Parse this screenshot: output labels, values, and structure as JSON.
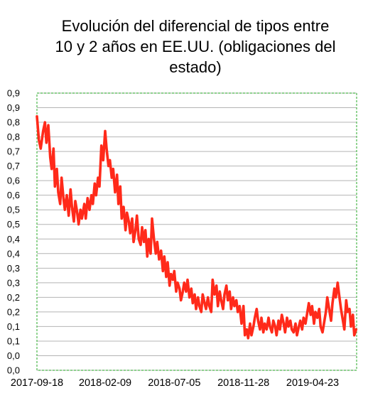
{
  "chart_data": {
    "type": "line",
    "title_lines": [
      "Evolución del diferencial de tipos entre",
      "10 y 2 años en EE.UU. (obligaciones del",
      "estado)"
    ],
    "xlabel": "",
    "ylabel": "",
    "x_tick_labels": [
      "2017-09-18",
      "2018-02-09",
      "2018-07-05",
      "2018-11-28",
      "2019-04-23"
    ],
    "x_tick_dates": [
      "2017-09-18",
      "2018-02-09",
      "2018-07-05",
      "2018-11-28",
      "2019-04-23"
    ],
    "x_range": [
      "2017-09-18",
      "2019-07-25"
    ],
    "y_tick_labels": [
      "0,0",
      "0,0",
      "0,1",
      "0,1",
      "0,2",
      "0,2",
      "0,3",
      "0,3",
      "0,4",
      "0,4",
      "0,5",
      "0,5",
      "0,6",
      "0,6",
      "0,7",
      "0,7",
      "0,8",
      "0,8",
      "0,9",
      "0,9"
    ],
    "ylim": [
      0,
      0.95
    ],
    "grid": true,
    "legend": "none",
    "colors": {
      "line": "#ff2a1a",
      "grid": "#b4b4b4",
      "frame": "#4bb74b"
    },
    "series": [
      {
        "x": [
          "2017-09-18",
          "2017-09-22",
          "2017-09-26",
          "2017-10-01",
          "2017-10-05",
          "2017-10-08",
          "2017-10-12",
          "2017-10-16",
          "2017-10-19",
          "2017-10-23",
          "2017-10-26",
          "2017-10-30",
          "2017-11-02",
          "2017-11-06",
          "2017-11-09",
          "2017-11-13",
          "2017-11-16",
          "2017-11-20",
          "2017-11-24",
          "2017-11-28",
          "2017-12-01",
          "2017-12-05",
          "2017-12-08",
          "2017-12-12",
          "2017-12-15",
          "2017-12-19",
          "2017-12-22",
          "2017-12-27",
          "2017-12-30",
          "2018-01-03",
          "2018-01-07",
          "2018-01-11",
          "2018-01-14",
          "2018-01-18",
          "2018-01-21",
          "2018-01-25",
          "2018-01-28",
          "2018-02-01",
          "2018-02-05",
          "2018-02-09",
          "2018-02-12",
          "2018-02-16",
          "2018-02-19",
          "2018-02-23",
          "2018-02-26",
          "2018-03-02",
          "2018-03-06",
          "2018-03-09",
          "2018-03-13",
          "2018-03-16",
          "2018-03-20",
          "2018-03-24",
          "2018-03-27",
          "2018-03-31",
          "2018-04-03",
          "2018-04-07",
          "2018-04-10",
          "2018-04-14",
          "2018-04-17",
          "2018-04-21",
          "2018-04-25",
          "2018-04-28",
          "2018-05-02",
          "2018-05-05",
          "2018-05-09",
          "2018-05-12",
          "2018-05-16",
          "2018-05-19",
          "2018-05-23",
          "2018-05-27",
          "2018-05-30",
          "2018-06-03",
          "2018-06-07",
          "2018-06-11",
          "2018-06-14",
          "2018-06-18",
          "2018-06-21",
          "2018-06-25",
          "2018-06-28",
          "2018-07-02",
          "2018-07-05",
          "2018-07-09",
          "2018-07-12",
          "2018-07-16",
          "2018-07-19",
          "2018-07-23",
          "2018-07-26",
          "2018-07-30",
          "2018-08-02",
          "2018-08-06",
          "2018-08-10",
          "2018-08-13",
          "2018-08-17",
          "2018-08-20",
          "2018-08-24",
          "2018-08-27",
          "2018-08-31",
          "2018-09-03",
          "2018-09-07",
          "2018-09-10",
          "2018-09-14",
          "2018-09-17",
          "2018-09-21",
          "2018-09-24",
          "2018-09-28",
          "2018-10-02",
          "2018-10-05",
          "2018-10-09",
          "2018-10-12",
          "2018-10-16",
          "2018-10-19",
          "2018-10-23",
          "2018-10-26",
          "2018-10-30",
          "2018-11-02",
          "2018-11-06",
          "2018-11-09",
          "2018-11-13",
          "2018-11-16",
          "2018-11-20",
          "2018-11-24",
          "2018-11-28",
          "2018-12-01",
          "2018-12-05",
          "2018-12-08",
          "2018-12-12",
          "2018-12-15",
          "2018-12-19",
          "2018-12-22",
          "2018-12-26",
          "2018-12-29",
          "2019-01-02",
          "2019-01-05",
          "2019-01-09",
          "2019-01-12",
          "2019-01-16",
          "2019-01-20",
          "2019-01-23",
          "2019-01-27",
          "2019-01-30",
          "2019-02-03",
          "2019-02-06",
          "2019-02-10",
          "2019-02-13",
          "2019-02-17",
          "2019-02-21",
          "2019-02-24",
          "2019-02-28",
          "2019-03-03",
          "2019-03-07",
          "2019-03-10",
          "2019-03-14",
          "2019-03-18",
          "2019-03-21",
          "2019-03-25",
          "2019-03-28",
          "2019-04-01",
          "2019-04-04",
          "2019-04-08",
          "2019-04-12",
          "2019-04-15",
          "2019-04-19",
          "2019-04-22",
          "2019-04-26",
          "2019-04-29",
          "2019-05-03",
          "2019-05-07",
          "2019-05-10",
          "2019-05-14",
          "2019-05-17",
          "2019-05-21",
          "2019-05-24",
          "2019-05-28",
          "2019-06-01",
          "2019-06-04",
          "2019-06-08",
          "2019-06-11",
          "2019-06-15",
          "2019-06-18",
          "2019-06-22",
          "2019-06-26",
          "2019-06-29",
          "2019-07-03",
          "2019-07-06",
          "2019-07-10",
          "2019-07-13",
          "2019-07-17",
          "2019-07-20",
          "2019-07-24"
        ],
        "values": [
          0.87,
          0.79,
          0.76,
          0.82,
          0.85,
          0.78,
          0.84,
          0.73,
          0.69,
          0.76,
          0.63,
          0.69,
          0.61,
          0.57,
          0.66,
          0.59,
          0.55,
          0.6,
          0.53,
          0.62,
          0.56,
          0.51,
          0.58,
          0.54,
          0.5,
          0.55,
          0.52,
          0.57,
          0.52,
          0.59,
          0.55,
          0.6,
          0.57,
          0.64,
          0.6,
          0.66,
          0.63,
          0.77,
          0.72,
          0.82,
          0.76,
          0.7,
          0.72,
          0.66,
          0.69,
          0.61,
          0.67,
          0.57,
          0.63,
          0.52,
          0.56,
          0.48,
          0.54,
          0.51,
          0.47,
          0.52,
          0.44,
          0.48,
          0.53,
          0.45,
          0.43,
          0.49,
          0.44,
          0.48,
          0.39,
          0.45,
          0.4,
          0.52,
          0.45,
          0.4,
          0.44,
          0.38,
          0.41,
          0.34,
          0.39,
          0.32,
          0.37,
          0.29,
          0.33,
          0.31,
          0.34,
          0.27,
          0.3,
          0.28,
          0.24,
          0.27,
          0.3,
          0.27,
          0.31,
          0.25,
          0.28,
          0.23,
          0.26,
          0.21,
          0.25,
          0.22,
          0.2,
          0.26,
          0.23,
          0.21,
          0.25,
          0.22,
          0.2,
          0.31,
          0.26,
          0.29,
          0.22,
          0.27,
          0.24,
          0.21,
          0.26,
          0.29,
          0.24,
          0.27,
          0.21,
          0.25,
          0.22,
          0.24,
          0.2,
          0.22,
          0.16,
          0.22,
          0.12,
          0.14,
          0.11,
          0.16,
          0.12,
          0.15,
          0.18,
          0.21,
          0.17,
          0.14,
          0.18,
          0.13,
          0.16,
          0.14,
          0.18,
          0.15,
          0.13,
          0.17,
          0.15,
          0.12,
          0.17,
          0.14,
          0.19,
          0.16,
          0.13,
          0.18,
          0.15,
          0.17,
          0.14,
          0.13,
          0.16,
          0.12,
          0.15,
          0.17,
          0.14,
          0.18,
          0.16,
          0.2,
          0.23,
          0.19,
          0.22,
          0.16,
          0.2,
          0.18,
          0.21,
          0.15,
          0.13,
          0.16,
          0.2,
          0.25,
          0.21,
          0.17,
          0.23,
          0.28,
          0.25,
          0.3,
          0.26,
          0.21,
          0.17,
          0.14,
          0.24,
          0.2,
          0.21,
          0.15,
          0.19,
          0.12,
          0.14
        ]
      }
    ]
  }
}
